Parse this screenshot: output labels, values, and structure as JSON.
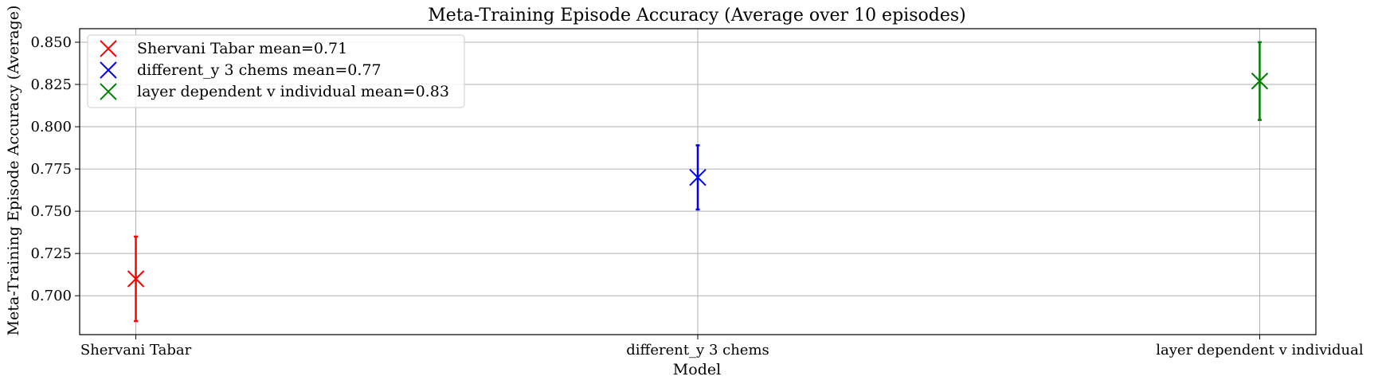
{
  "chart_data": {
    "type": "scatter",
    "title": "Meta-Training Episode Accuracy (Average over 10 episodes)",
    "xlabel": "Model",
    "ylabel": "Meta-Training Episode Accuracy (Average)",
    "categories": [
      "Shervani Tabar",
      "different_y 3 chems",
      "layer dependent v individual"
    ],
    "ylim": [
      0.677,
      0.858
    ],
    "yticks": [
      0.7,
      0.725,
      0.75,
      0.775,
      0.8,
      0.825,
      0.85
    ],
    "ytick_labels": [
      "0.700",
      "0.725",
      "0.750",
      "0.775",
      "0.800",
      "0.825",
      "0.850"
    ],
    "grid": true,
    "legend_position": "upper left",
    "series": [
      {
        "name": "Shervani Tabar mean=0.71",
        "category": "Shervani Tabar",
        "mean": 0.71,
        "err_low": 0.685,
        "err_high": 0.735,
        "color": "#ff0000",
        "marker": "x"
      },
      {
        "name": "different_y 3 chems mean=0.77",
        "category": "different_y 3 chems",
        "mean": 0.77,
        "err_low": 0.751,
        "err_high": 0.789,
        "color": "#0000ff",
        "marker": "x"
      },
      {
        "name": "layer dependent v individual mean=0.83",
        "category": "layer dependent v individual",
        "mean": 0.827,
        "err_low": 0.804,
        "err_high": 0.85,
        "color": "#008000",
        "marker": "x"
      }
    ]
  }
}
